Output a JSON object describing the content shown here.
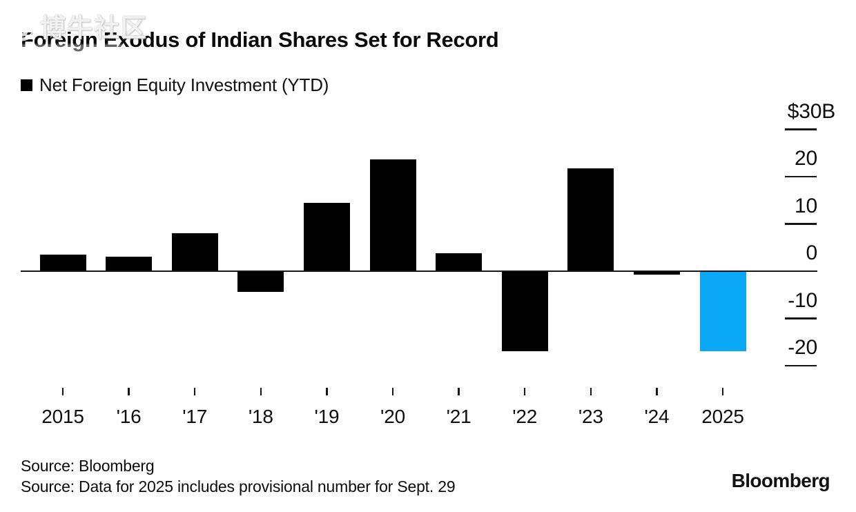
{
  "watermark": {
    "text": "博牛社区",
    "logo": "swirl-bull-logo"
  },
  "title": "Foreign Exodus of Indian Shares Set for Record",
  "legend": {
    "label": "Net Foreign Equity Investment (YTD)",
    "swatch_color": "#000000"
  },
  "chart_data": {
    "type": "bar",
    "title": "Foreign Exodus of Indian Shares Set for Record",
    "legend": "Net Foreign Equity Investment (YTD)",
    "unit": "billions of US dollars",
    "categories": [
      "2015",
      "'16",
      "'17",
      "'18",
      "'19",
      "'20",
      "'21",
      "'22",
      "'23",
      "'24",
      "2025"
    ],
    "values": [
      3.5,
      3.1,
      8.0,
      -4.4,
      14.5,
      23.6,
      3.8,
      -16.9,
      21.7,
      -0.7,
      -16.9
    ],
    "bar_colors": {
      "default": "#000000",
      "highlight": "#0aa8f6",
      "highlight_index": 10
    },
    "y_axis": {
      "position": "right",
      "labels": [
        "$30B",
        "20",
        "10",
        "0",
        "-10",
        "-20"
      ],
      "values": [
        30,
        20,
        10,
        0,
        -10,
        -20
      ],
      "range": [
        -22,
        32
      ],
      "grid": false
    },
    "legend_position": "top-left"
  },
  "sources": [
    "Source: Bloomberg",
    "Source: Data for 2025 includes provisional number for Sept. 29"
  ],
  "brand": "Bloomberg"
}
